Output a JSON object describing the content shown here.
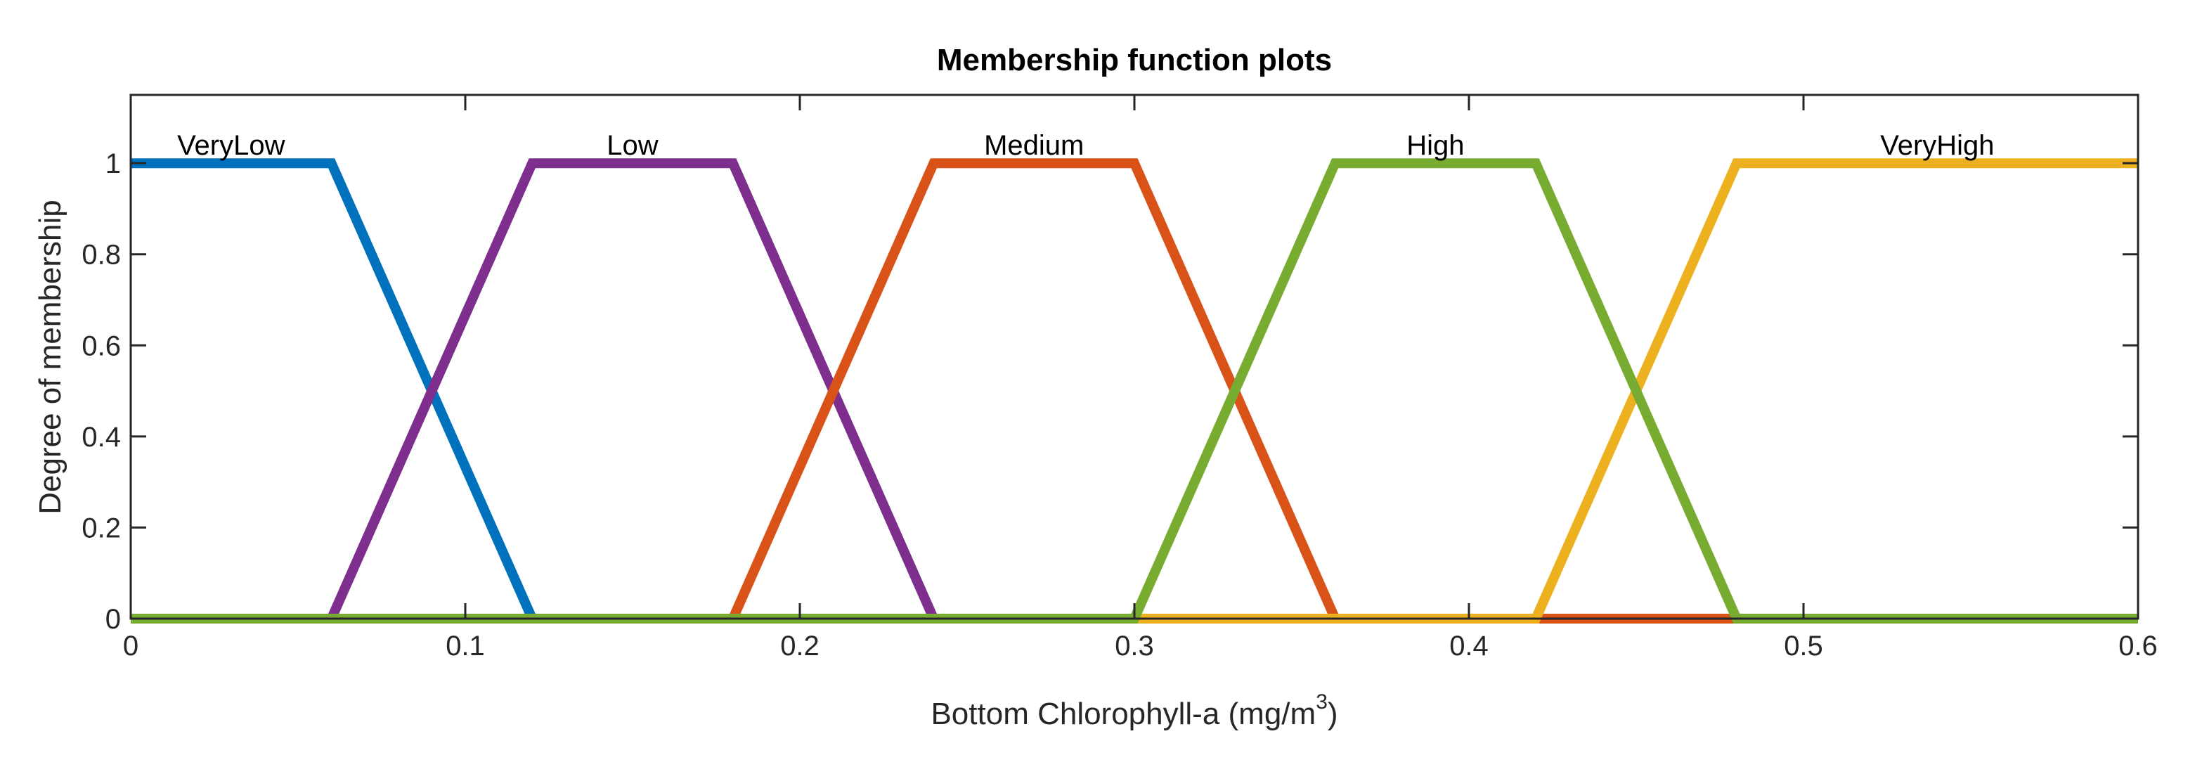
{
  "chart_data": {
    "type": "line",
    "title": "Membership function plots",
    "xlabel": "Bottom Chlorophyll-a (mg/m",
    "xlabel_superscript": "3",
    "xlabel_suffix": ")",
    "ylabel": "Degree of membership",
    "xlim": [
      0,
      0.6
    ],
    "ylim": [
      0,
      1.15
    ],
    "x_ticks": [
      0,
      0.1,
      0.2,
      0.3,
      0.4,
      0.5,
      0.6
    ],
    "x_tick_labels": [
      "0",
      "0.1",
      "0.2",
      "0.3",
      "0.4",
      "0.5",
      "0.6"
    ],
    "y_ticks": [
      0,
      0.2,
      0.4,
      0.6,
      0.8,
      1
    ],
    "y_tick_labels": [
      "0",
      "0.2",
      "0.4",
      "0.6",
      "0.8",
      "1"
    ],
    "grid": false,
    "series": [
      {
        "name": "VeryLow",
        "color": "#0072BD",
        "label_x": 0.03,
        "x": [
          0,
          0.06,
          0.12,
          0.6
        ],
        "y": [
          1,
          1,
          0,
          0
        ]
      },
      {
        "name": "Low",
        "color": "#7E2F8E",
        "label_x": 0.15,
        "x": [
          0,
          0.06,
          0.12,
          0.18,
          0.24,
          0.6
        ],
        "y": [
          0,
          0,
          1,
          1,
          0,
          0
        ]
      },
      {
        "name": "Medium",
        "color": "#D95319",
        "label_x": 0.27,
        "x": [
          0,
          0.18,
          0.24,
          0.3,
          0.36,
          0.6
        ],
        "y": [
          0,
          0,
          1,
          1,
          0,
          0
        ]
      },
      {
        "name": "VeryHigh",
        "color": "#EDB120",
        "label_x": 0.54,
        "x": [
          0,
          0.42,
          0.48,
          0.6
        ],
        "y": [
          0,
          0,
          1,
          1
        ]
      },
      {
        "name": "High",
        "color": "#77AC30",
        "label_x": 0.39,
        "x": [
          0,
          0.3,
          0.36,
          0.42,
          0.48,
          0.6
        ],
        "y": [
          0,
          0,
          1,
          1,
          0,
          0
        ]
      }
    ]
  }
}
